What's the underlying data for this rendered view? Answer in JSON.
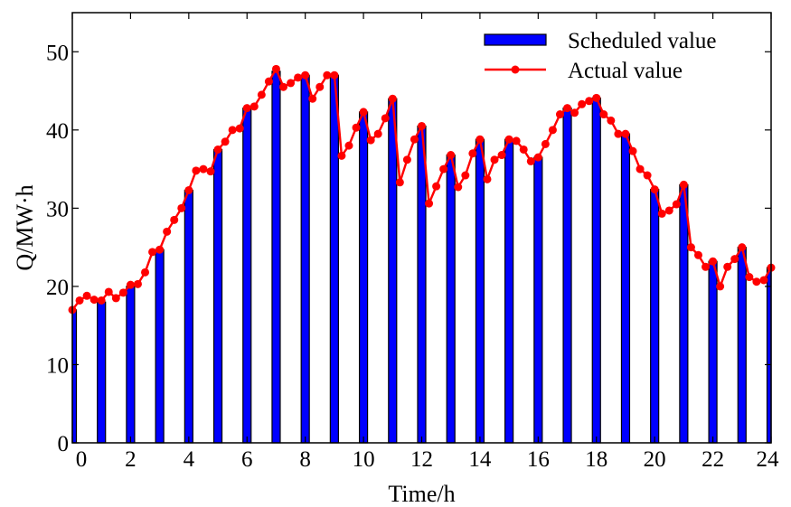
{
  "chart_data": {
    "type": "bar",
    "xlabel": "Time/h",
    "ylabel": "Q/MW·h",
    "xlim": [
      0,
      24
    ],
    "ylim": [
      0,
      55
    ],
    "xticks": [
      0,
      2,
      4,
      6,
      8,
      10,
      12,
      14,
      16,
      18,
      20,
      22,
      24
    ],
    "yticks": [
      0,
      10,
      20,
      30,
      40,
      50
    ],
    "grid": false,
    "legend_position": "top-right",
    "series": [
      {
        "name": "Scheduled value",
        "type": "bar",
        "color": "#0000ff",
        "edge_color": "#000000",
        "x": [
          0,
          1,
          2,
          3,
          4,
          5,
          6,
          7,
          8,
          9,
          10,
          11,
          12,
          13,
          14,
          15,
          16,
          17,
          18,
          19,
          20,
          21,
          22,
          23,
          24
        ],
        "values": [
          17,
          18,
          20,
          24.7,
          32.3,
          37.5,
          42.8,
          47.5,
          47,
          47,
          42.3,
          44,
          40.5,
          36.8,
          38.8,
          38.8,
          36.5,
          42.8,
          44.1,
          39.5,
          32.4,
          33,
          23.2,
          25,
          22.4
        ]
      },
      {
        "name": "Actual value",
        "type": "line",
        "color": "#ff0000",
        "marker": "circle",
        "x": [
          0,
          0.25,
          0.5,
          0.75,
          1,
          1.25,
          1.5,
          1.75,
          2,
          2.25,
          2.5,
          2.75,
          3,
          3.25,
          3.5,
          3.75,
          4,
          4.25,
          4.5,
          4.75,
          5,
          5.25,
          5.5,
          5.75,
          6,
          6.25,
          6.5,
          6.75,
          7,
          7.25,
          7.5,
          7.75,
          8,
          8.25,
          8.5,
          8.75,
          9,
          9.25,
          9.5,
          9.75,
          10,
          10.25,
          10.5,
          10.75,
          11,
          11.25,
          11.5,
          11.75,
          12,
          12.25,
          12.5,
          12.75,
          13,
          13.25,
          13.5,
          13.75,
          14,
          14.25,
          14.5,
          14.75,
          15,
          15.25,
          15.5,
          15.75,
          16,
          16.25,
          16.5,
          16.75,
          17,
          17.25,
          17.5,
          17.75,
          18,
          18.25,
          18.5,
          18.75,
          19,
          19.25,
          19.5,
          19.75,
          20,
          20.25,
          20.5,
          20.75,
          21,
          21.25,
          21.5,
          21.75,
          22,
          22.25,
          22.5,
          22.75,
          23,
          23.25,
          23.5,
          23.75,
          24
        ],
        "values": [
          17,
          18.2,
          18.8,
          18.3,
          18.2,
          19.3,
          18.5,
          19.2,
          20.2,
          20.3,
          21.8,
          24.4,
          24.7,
          27,
          28.5,
          30,
          32.3,
          34.8,
          35,
          34.7,
          37.5,
          38.5,
          40,
          40.2,
          42.8,
          43,
          44.5,
          46.2,
          47.8,
          45.5,
          46,
          46.7,
          47,
          44,
          45.5,
          47,
          47,
          36.7,
          38,
          40.3,
          42.3,
          38.7,
          39.5,
          41.5,
          44,
          33.3,
          36.2,
          38.8,
          40.5,
          30.6,
          32.8,
          35,
          36.8,
          32.7,
          34.2,
          37,
          38.8,
          33.7,
          36.2,
          36.8,
          38.8,
          38.6,
          37.5,
          36,
          36.5,
          38.2,
          40,
          42,
          42.8,
          42.2,
          43.3,
          43.7,
          44.1,
          42,
          41.2,
          39.5,
          39.5,
          37.3,
          35,
          34.2,
          32.4,
          29.3,
          29.7,
          30.5,
          33,
          25,
          24,
          22.5,
          23.2,
          20,
          22.5,
          23.5,
          25,
          21.2,
          20.6,
          20.8,
          22.4
        ]
      }
    ]
  }
}
